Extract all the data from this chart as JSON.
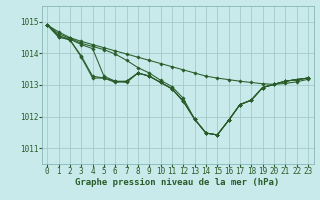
{
  "background_color": "#c8eaea",
  "grid_color": "#9ec4c4",
  "line_color": "#2a5c2a",
  "xlabel": "Graphe pression niveau de la mer (hPa)",
  "xlabel_fontsize": 6.5,
  "tick_fontsize": 5.5,
  "ylim": [
    1010.5,
    1015.5
  ],
  "xlim": [
    -0.5,
    23.5
  ],
  "yticks": [
    1011,
    1012,
    1013,
    1014,
    1015
  ],
  "xticks": [
    0,
    1,
    2,
    3,
    4,
    5,
    6,
    7,
    8,
    9,
    10,
    11,
    12,
    13,
    14,
    15,
    16,
    17,
    18,
    19,
    20,
    21,
    22,
    23
  ],
  "lines": [
    [
      1014.9,
      1014.68,
      1014.5,
      1014.38,
      1014.28,
      1014.18,
      1014.08,
      1013.98,
      1013.88,
      1013.78,
      1013.68,
      1013.58,
      1013.48,
      1013.38,
      1013.28,
      1013.22,
      1013.17,
      1013.12,
      1013.08,
      1013.04,
      1013.02,
      1013.05,
      1013.1,
      1013.18
    ],
    [
      1014.9,
      1014.62,
      1014.48,
      1014.32,
      1014.22,
      1014.12,
      1013.98,
      1013.78,
      1013.55,
      1013.38,
      1013.15,
      1012.95,
      1012.58,
      1011.92,
      1011.48,
      1011.42,
      1011.88,
      1012.38,
      1012.52,
      1012.92,
      1013.02,
      1013.12,
      1013.17,
      1013.22
    ],
    [
      1014.9,
      1014.56,
      1014.45,
      1014.28,
      1014.15,
      1013.28,
      1013.12,
      1013.08,
      1013.38,
      1013.28,
      1013.08,
      1012.88,
      1012.5,
      1011.92,
      1011.48,
      1011.42,
      1011.88,
      1012.38,
      1012.52,
      1012.92,
      1013.02,
      1013.12,
      1013.17,
      1013.22
    ],
    [
      1014.9,
      1014.52,
      1014.43,
      1013.92,
      1013.28,
      1013.22,
      1013.08,
      1013.12,
      1013.38,
      1013.28,
      1013.08,
      1012.88,
      1012.48,
      1011.92,
      1011.48,
      1011.42,
      1011.88,
      1012.38,
      1012.52,
      1012.92,
      1013.02,
      1013.12,
      1013.17,
      1013.22
    ],
    [
      1014.9,
      1014.52,
      1014.43,
      1013.88,
      1013.22,
      1013.22,
      1013.12,
      1013.12,
      1013.38,
      1013.28,
      1013.08,
      1012.88,
      1012.48,
      1011.92,
      1011.48,
      1011.42,
      1011.88,
      1012.38,
      1012.52,
      1012.92,
      1013.02,
      1013.12,
      1013.17,
      1013.22
    ]
  ]
}
